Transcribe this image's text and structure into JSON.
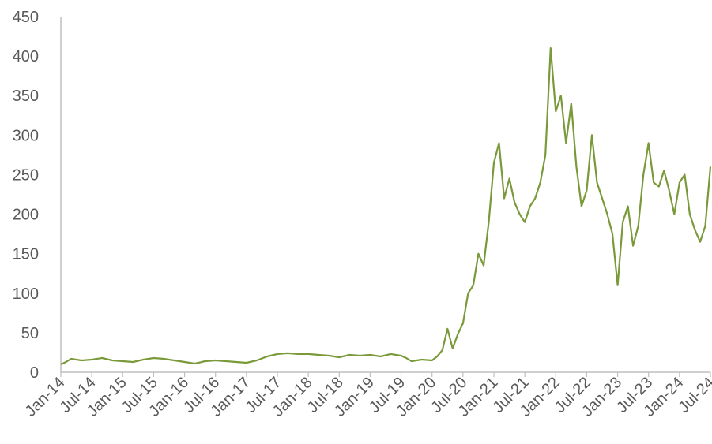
{
  "chart_data": {
    "type": "line",
    "title": "",
    "xlabel": "",
    "ylabel": "",
    "ylim": [
      0,
      450
    ],
    "y_ticks": [
      0,
      50,
      100,
      150,
      200,
      250,
      300,
      350,
      400,
      450
    ],
    "x_range": [
      "2014-01",
      "2024-07"
    ],
    "x_tick_labels": [
      "Jan-14",
      "Jul-14",
      "Jan-15",
      "Jul-15",
      "Jan-16",
      "Jul-16",
      "Jan-17",
      "Jul-17",
      "Jan-18",
      "Jul-18",
      "Jan-19",
      "Jul-19",
      "Jan-20",
      "Jul-20",
      "Jan-21",
      "Jul-21",
      "Jan-22",
      "Jul-22",
      "Jan-23",
      "Jul-23",
      "Jan-24",
      "Jul-24"
    ],
    "grid": false,
    "legend": "none",
    "line_color": "#7a9a3a",
    "series": [
      {
        "x": [
          "2014-01",
          "2014-02",
          "2014-03",
          "2014-05",
          "2014-07",
          "2014-09",
          "2014-11",
          "2015-01",
          "2015-03",
          "2015-05",
          "2015-07",
          "2015-09",
          "2015-11",
          "2016-01",
          "2016-03",
          "2016-05",
          "2016-07",
          "2016-09",
          "2016-11",
          "2017-01",
          "2017-03",
          "2017-05",
          "2017-07",
          "2017-09",
          "2017-11",
          "2018-01",
          "2018-03",
          "2018-05",
          "2018-07",
          "2018-09",
          "2018-11",
          "2019-01",
          "2019-03",
          "2019-05",
          "2019-07",
          "2019-08",
          "2019-09",
          "2019-11",
          "2020-01",
          "2020-02",
          "2020-03",
          "2020-04",
          "2020-05",
          "2020-06",
          "2020-07",
          "2020-08",
          "2020-09",
          "2020-10",
          "2020-11",
          "2020-12",
          "2021-01",
          "2021-02",
          "2021-03",
          "2021-04",
          "2021-05",
          "2021-06",
          "2021-07",
          "2021-08",
          "2021-09",
          "2021-10",
          "2021-11",
          "2021-12",
          "2022-01",
          "2022-02",
          "2022-03",
          "2022-04",
          "2022-05",
          "2022-06",
          "2022-07",
          "2022-08",
          "2022-09",
          "2022-10",
          "2022-11",
          "2022-12",
          "2023-01",
          "2023-02",
          "2023-03",
          "2023-04",
          "2023-05",
          "2023-06",
          "2023-07",
          "2023-08",
          "2023-09",
          "2023-10",
          "2023-11",
          "2023-12",
          "2024-01",
          "2024-02",
          "2024-03",
          "2024-04",
          "2024-05",
          "2024-06",
          "2024-07"
        ],
        "values": [
          10,
          13,
          17,
          15,
          16,
          18,
          15,
          14,
          13,
          16,
          18,
          17,
          15,
          13,
          11,
          14,
          15,
          14,
          13,
          12,
          15,
          20,
          23,
          24,
          23,
          23,
          22,
          21,
          19,
          22,
          21,
          22,
          20,
          23,
          21,
          18,
          14,
          16,
          15,
          20,
          28,
          55,
          30,
          48,
          62,
          100,
          110,
          150,
          135,
          190,
          265,
          290,
          220,
          245,
          215,
          200,
          190,
          210,
          220,
          240,
          275,
          410,
          330,
          350,
          290,
          340,
          260,
          210,
          230,
          300,
          240,
          220,
          200,
          175,
          110,
          190,
          210,
          160,
          185,
          250,
          290,
          240,
          235,
          255,
          230,
          200,
          240,
          250,
          200,
          180,
          165,
          185,
          260
        ]
      }
    ]
  }
}
